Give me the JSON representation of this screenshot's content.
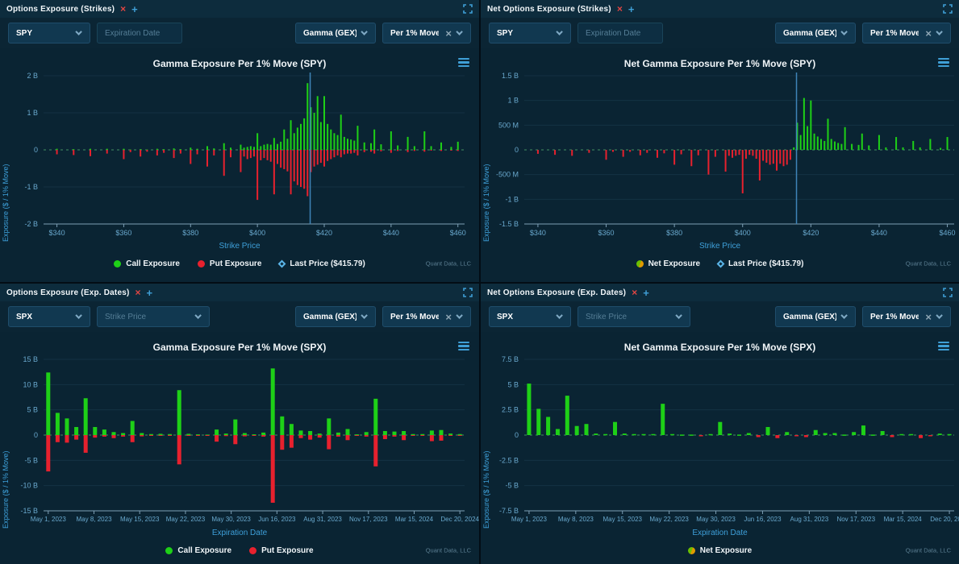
{
  "brand": {
    "watermark": "Quant Data, LLC"
  },
  "colors": {
    "call": "#1ed017",
    "put": "#e7212e",
    "net_positive": "#1ed017",
    "net_negative": "#e7212e",
    "last_price_line": "#3e84b8",
    "accent_blue": "#3f9fd6",
    "close_red": "#e04643",
    "axis": "#7d9fb5",
    "zero_dash": "#58b573"
  },
  "panels": [
    {
      "tab_title": "Options Exposure (Strikes)",
      "toolbar": {
        "ticker": "SPY",
        "filter": {
          "kind": "input",
          "placeholder": "Expiration Date"
        },
        "metric": "Gamma (GEX)",
        "mode": "Per 1% Move"
      },
      "chart": {
        "title": "Gamma Exposure Per 1% Move (SPY)",
        "xlabel": "Strike Price",
        "ylabel": "Exposure ($ / 1% Move)"
      }
    },
    {
      "tab_title": "Net Options Exposure (Strikes)",
      "toolbar": {
        "ticker": "SPY",
        "filter": {
          "kind": "input",
          "placeholder": "Expiration Date"
        },
        "metric": "Gamma (GEX)",
        "mode": "Per 1% Move"
      },
      "chart": {
        "title": "Net Gamma Exposure Per 1% Move (SPY)",
        "xlabel": "Strike Price",
        "ylabel": "Exposure ($ / 1% Move)"
      }
    },
    {
      "tab_title": "Options Exposure (Exp. Dates)",
      "toolbar": {
        "ticker": "SPX",
        "filter": {
          "kind": "select",
          "placeholder": "Strike Price"
        },
        "metric": "Gamma (GEX)",
        "mode": "Per 1% Move"
      },
      "chart": {
        "title": "Gamma Exposure Per 1% Move (SPX)",
        "xlabel": "Expiration Date",
        "ylabel": "Exposure ($ / 1% Move)"
      }
    },
    {
      "tab_title": "Net Options Exposure (Exp. Dates)",
      "toolbar": {
        "ticker": "SPX",
        "filter": {
          "kind": "select",
          "placeholder": "Strike Price"
        },
        "metric": "Gamma (GEX)",
        "mode": "Per 1% Move"
      },
      "chart": {
        "title": "Net Gamma Exposure Per 1% Move (SPX)",
        "xlabel": "Expiration Date",
        "ylabel": "Exposure ($ / 1% Move)"
      }
    }
  ],
  "chart_data": [
    {
      "type": "bar",
      "title": "Gamma Exposure Per 1% Move (SPY)",
      "xlabel": "Strike Price",
      "ylabel": "Exposure ($ / 1% Move)",
      "units": "billions USD per 1% move",
      "x_type": "strike",
      "xlim": [
        336,
        462
      ],
      "ylim": [
        -2,
        2
      ],
      "yticks": [
        {
          "v": 2,
          "label": "2 B"
        },
        {
          "v": 1,
          "label": "1 B"
        },
        {
          "v": 0,
          "label": "0"
        },
        {
          "v": -1,
          "label": "-1 B"
        },
        {
          "v": -2,
          "label": "-2 B"
        }
      ],
      "xticks": [
        {
          "v": 340,
          "label": "$340"
        },
        {
          "v": 360,
          "label": "$360"
        },
        {
          "v": 380,
          "label": "$380"
        },
        {
          "v": 400,
          "label": "$400"
        },
        {
          "v": 420,
          "label": "$420"
        },
        {
          "v": 440,
          "label": "$440"
        },
        {
          "v": 460,
          "label": "$460"
        }
      ],
      "last_price": 415.79,
      "strikes": [
        340,
        345,
        350,
        355,
        360,
        362,
        365,
        367,
        370,
        372,
        375,
        377,
        380,
        382,
        385,
        387,
        390,
        392,
        395,
        396,
        397,
        398,
        399,
        400,
        401,
        402,
        403,
        404,
        405,
        406,
        407,
        408,
        409,
        410,
        411,
        412,
        413,
        414,
        415,
        416,
        417,
        418,
        419,
        420,
        421,
        422,
        423,
        424,
        425,
        426,
        427,
        428,
        429,
        430,
        432,
        434,
        435,
        437,
        440,
        442,
        445,
        447,
        450,
        452,
        455,
        458,
        460
      ],
      "call": [
        0.03,
        0.02,
        0.03,
        0.03,
        0.03,
        0.01,
        0.02,
        0.01,
        0.03,
        0.02,
        0.04,
        0.02,
        0.06,
        0.03,
        0.1,
        0.04,
        0.18,
        0.06,
        0.14,
        0.06,
        0.08,
        0.1,
        0.08,
        0.45,
        0.1,
        0.14,
        0.16,
        0.14,
        0.32,
        0.16,
        0.22,
        0.55,
        0.3,
        0.8,
        0.45,
        0.6,
        0.7,
        0.85,
        1.8,
        1.15,
        1.0,
        1.45,
        0.75,
        1.45,
        0.7,
        0.55,
        0.45,
        0.4,
        0.95,
        0.35,
        0.3,
        0.28,
        0.25,
        0.65,
        0.2,
        0.18,
        0.55,
        0.15,
        0.5,
        0.12,
        0.35,
        0.1,
        0.5,
        0.1,
        0.2,
        0.08,
        0.22
      ],
      "put": [
        -0.12,
        -0.14,
        -0.17,
        -0.1,
        -0.25,
        -0.06,
        -0.18,
        -0.05,
        -0.15,
        -0.08,
        -0.22,
        -0.1,
        -0.38,
        -0.12,
        -0.45,
        -0.15,
        -0.7,
        -0.2,
        -0.6,
        -0.18,
        -0.25,
        -0.22,
        -0.18,
        -1.35,
        -0.28,
        -0.22,
        -0.28,
        -0.32,
        -1.2,
        -0.38,
        -0.48,
        -0.52,
        -0.58,
        -1.2,
        -0.85,
        -0.95,
        -1.0,
        -1.05,
        -1.25,
        -0.6,
        -0.45,
        -0.4,
        -0.35,
        -0.45,
        -0.3,
        -0.25,
        -0.2,
        -0.15,
        -0.2,
        -0.12,
        -0.1,
        -0.1,
        -0.08,
        -0.15,
        -0.06,
        -0.05,
        -0.1,
        -0.04,
        -0.08,
        -0.03,
        -0.06,
        -0.03,
        -0.05,
        -0.02,
        -0.03,
        -0.02,
        -0.03
      ],
      "legend": [
        {
          "label": "Call Exposure",
          "marker": "dot",
          "color": "#1ed017"
        },
        {
          "label": "Put Exposure",
          "marker": "dot",
          "color": "#e7212e"
        },
        {
          "label": "Last Price ($415.79)",
          "marker": "diamond"
        }
      ]
    },
    {
      "type": "bar",
      "title": "Net Gamma Exposure Per 1% Move (SPY)",
      "xlabel": "Strike Price",
      "ylabel": "Exposure ($ / 1% Move)",
      "units": "billions USD per 1% move",
      "x_type": "strike",
      "xlim": [
        336,
        462
      ],
      "ylim": [
        -1.5,
        1.5
      ],
      "yticks": [
        {
          "v": 1.5,
          "label": "1.5 B"
        },
        {
          "v": 1,
          "label": "1 B"
        },
        {
          "v": 0.5,
          "label": "500 M"
        },
        {
          "v": 0,
          "label": "0"
        },
        {
          "v": -0.5,
          "label": "-500 M"
        },
        {
          "v": -1,
          "label": "-1 B"
        },
        {
          "v": -1.5,
          "label": "-1.5 B"
        }
      ],
      "xticks": [
        {
          "v": 340,
          "label": "$340"
        },
        {
          "v": 360,
          "label": "$360"
        },
        {
          "v": 380,
          "label": "$380"
        },
        {
          "v": 400,
          "label": "$400"
        },
        {
          "v": 420,
          "label": "$420"
        },
        {
          "v": 440,
          "label": "$440"
        },
        {
          "v": 460,
          "label": "$460"
        }
      ],
      "last_price": 415.79,
      "strikes": [
        340,
        345,
        350,
        355,
        360,
        362,
        365,
        367,
        370,
        372,
        375,
        377,
        380,
        382,
        385,
        387,
        390,
        392,
        395,
        396,
        397,
        398,
        399,
        400,
        401,
        402,
        403,
        404,
        405,
        406,
        407,
        408,
        409,
        410,
        411,
        412,
        413,
        414,
        415,
        416,
        417,
        418,
        419,
        420,
        421,
        422,
        423,
        424,
        425,
        426,
        427,
        428,
        429,
        430,
        432,
        434,
        435,
        437,
        440,
        442,
        445,
        447,
        450,
        452,
        455,
        458,
        460
      ],
      "net": [
        -0.08,
        -0.1,
        -0.12,
        -0.06,
        -0.2,
        -0.04,
        -0.14,
        -0.04,
        -0.11,
        -0.06,
        -0.16,
        -0.07,
        -0.3,
        -0.09,
        -0.33,
        -0.11,
        -0.5,
        -0.14,
        -0.44,
        -0.12,
        -0.16,
        -0.12,
        -0.1,
        -0.88,
        -0.18,
        -0.1,
        -0.12,
        -0.18,
        -0.62,
        -0.22,
        -0.26,
        -0.3,
        -0.28,
        -0.42,
        -0.28,
        -0.33,
        -0.3,
        -0.2,
        0.05,
        0.55,
        0.3,
        1.05,
        0.48,
        1.0,
        0.33,
        0.27,
        0.22,
        0.18,
        0.63,
        0.22,
        0.17,
        0.14,
        0.12,
        0.46,
        0.12,
        0.1,
        0.33,
        0.09,
        0.3,
        0.05,
        0.26,
        0.05,
        0.18,
        0.05,
        0.22,
        0.04,
        0.26
      ],
      "legend": [
        {
          "label": "Net Exposure",
          "marker": "net"
        },
        {
          "label": "Last Price ($415.79)",
          "marker": "diamond"
        }
      ]
    },
    {
      "type": "bar",
      "title": "Gamma Exposure Per 1% Move (SPX)",
      "xlabel": "Expiration Date",
      "ylabel": "Exposure ($ / 1% Move)",
      "units": "billions USD per 1% move",
      "x_type": "category",
      "ylim": [
        -15,
        15
      ],
      "yticks": [
        {
          "v": 15,
          "label": "15 B"
        },
        {
          "v": 10,
          "label": "10 B"
        },
        {
          "v": 5,
          "label": "5 B"
        },
        {
          "v": 0,
          "label": "0"
        },
        {
          "v": -5,
          "label": "-5 B"
        },
        {
          "v": -10,
          "label": "-10 B"
        },
        {
          "v": -15,
          "label": "-15 B"
        }
      ],
      "xtick_labels": [
        "May 1, 2023",
        "May 8, 2023",
        "May 15, 2023",
        "May 22, 2023",
        "May 30, 2023",
        "Jun 16, 2023",
        "Aug 31, 2023",
        "Nov 17, 2023",
        "Mar 15, 2024",
        "Dec 20, 2024"
      ],
      "call": [
        12.4,
        4.4,
        3.3,
        1.6,
        7.3,
        1.6,
        1.1,
        0.6,
        0.4,
        2.8,
        0.4,
        0.2,
        0.25,
        0.2,
        8.9,
        0.25,
        0.15,
        0.1,
        1.1,
        0.3,
        3.1,
        0.4,
        0.15,
        0.5,
        13.2,
        3.7,
        2.2,
        0.9,
        0.8,
        0.3,
        3.3,
        0.5,
        1.2,
        0.15,
        0.6,
        7.2,
        0.8,
        0.7,
        0.8,
        0.2,
        0.2,
        0.9,
        1.0,
        0.3,
        0.2
      ],
      "put": [
        -7.2,
        -1.4,
        -1.5,
        -0.9,
        -3.5,
        -0.5,
        -0.3,
        -0.6,
        -0.3,
        -1.4,
        -0.25,
        -0.1,
        -0.15,
        -0.1,
        -5.8,
        -0.15,
        -0.1,
        -0.05,
        -1.3,
        -0.2,
        -1.8,
        -0.25,
        -0.1,
        -0.3,
        -13.4,
        -2.9,
        -2.5,
        -0.6,
        -0.9,
        -0.5,
        -2.8,
        -0.3,
        -1.0,
        -0.1,
        -0.3,
        -6.2,
        -0.8,
        -0.3,
        -1.0,
        -0.1,
        -0.1,
        -1.2,
        -1.1,
        -0.15,
        -0.1
      ],
      "legend": [
        {
          "label": "Call Exposure",
          "marker": "dot",
          "color": "#1ed017"
        },
        {
          "label": "Put Exposure",
          "marker": "dot",
          "color": "#e7212e"
        }
      ]
    },
    {
      "type": "bar",
      "title": "Net Gamma Exposure Per 1% Move (SPX)",
      "xlabel": "Expiration Date",
      "ylabel": "Exposure ($ / 1% Move)",
      "units": "billions USD per 1% move",
      "x_type": "category",
      "ylim": [
        -7.5,
        7.5
      ],
      "yticks": [
        {
          "v": 7.5,
          "label": "7.5 B"
        },
        {
          "v": 5,
          "label": "5 B"
        },
        {
          "v": 2.5,
          "label": "2.5 B"
        },
        {
          "v": 0,
          "label": "0"
        },
        {
          "v": -2.5,
          "label": "-2.5 B"
        },
        {
          "v": -5,
          "label": "-5 B"
        },
        {
          "v": -7.5,
          "label": "-7.5 B"
        }
      ],
      "xtick_labels": [
        "May 1, 2023",
        "May 8, 2023",
        "May 15, 2023",
        "May 22, 2023",
        "May 30, 2023",
        "Jun 16, 2023",
        "Aug 31, 2023",
        "Nov 17, 2023",
        "Mar 15, 2024",
        "Dec 20, 2024"
      ],
      "net": [
        5.1,
        2.6,
        1.8,
        0.6,
        3.9,
        0.9,
        1.1,
        0.15,
        0.1,
        1.3,
        0.15,
        0.1,
        0.1,
        0.1,
        3.1,
        0.1,
        0.05,
        0.05,
        -0.1,
        0.1,
        1.3,
        0.15,
        0.05,
        0.2,
        -0.2,
        0.8,
        -0.3,
        0.3,
        -0.1,
        -0.2,
        0.5,
        0.2,
        0.2,
        0.05,
        0.3,
        0.95,
        0.05,
        0.4,
        -0.2,
        0.1,
        0.1,
        -0.3,
        -0.1,
        0.15,
        0.1
      ],
      "legend": [
        {
          "label": "Net Exposure",
          "marker": "net"
        }
      ]
    }
  ]
}
